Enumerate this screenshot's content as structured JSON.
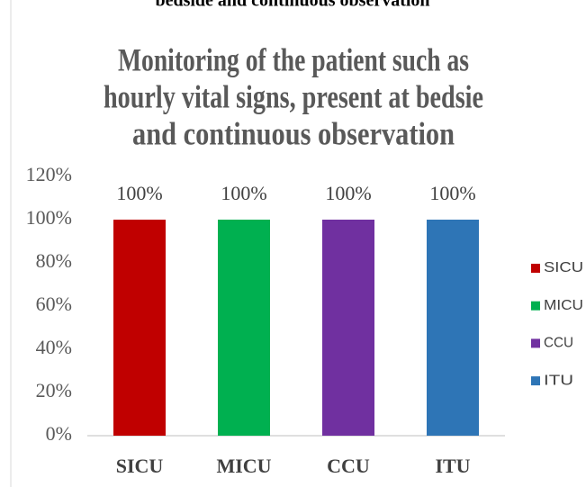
{
  "page_caption": "bedside and continuous observation",
  "chart_data": {
    "type": "bar",
    "title": [
      "Monitoring of the patient such as",
      "hourly vital signs, present at bedsie",
      "and continuous observation"
    ],
    "categories": [
      "SICU",
      "MICU",
      "CCU",
      "ITU"
    ],
    "values": [
      100,
      100,
      100,
      100
    ],
    "value_labels": [
      "100%",
      "100%",
      "100%",
      "100%"
    ],
    "colors": [
      "#c00000",
      "#00b050",
      "#7030a0",
      "#2e75b6"
    ],
    "ylim": [
      0,
      120
    ],
    "yticks": [
      {
        "value": 0,
        "label": "0%"
      },
      {
        "value": 20,
        "label": "20%"
      },
      {
        "value": 40,
        "label": "40%"
      },
      {
        "value": 60,
        "label": "60%"
      },
      {
        "value": 80,
        "label": "80%"
      },
      {
        "value": 100,
        "label": "100%"
      },
      {
        "value": 120,
        "label": "120%"
      }
    ],
    "grid": false,
    "legend": "right"
  }
}
